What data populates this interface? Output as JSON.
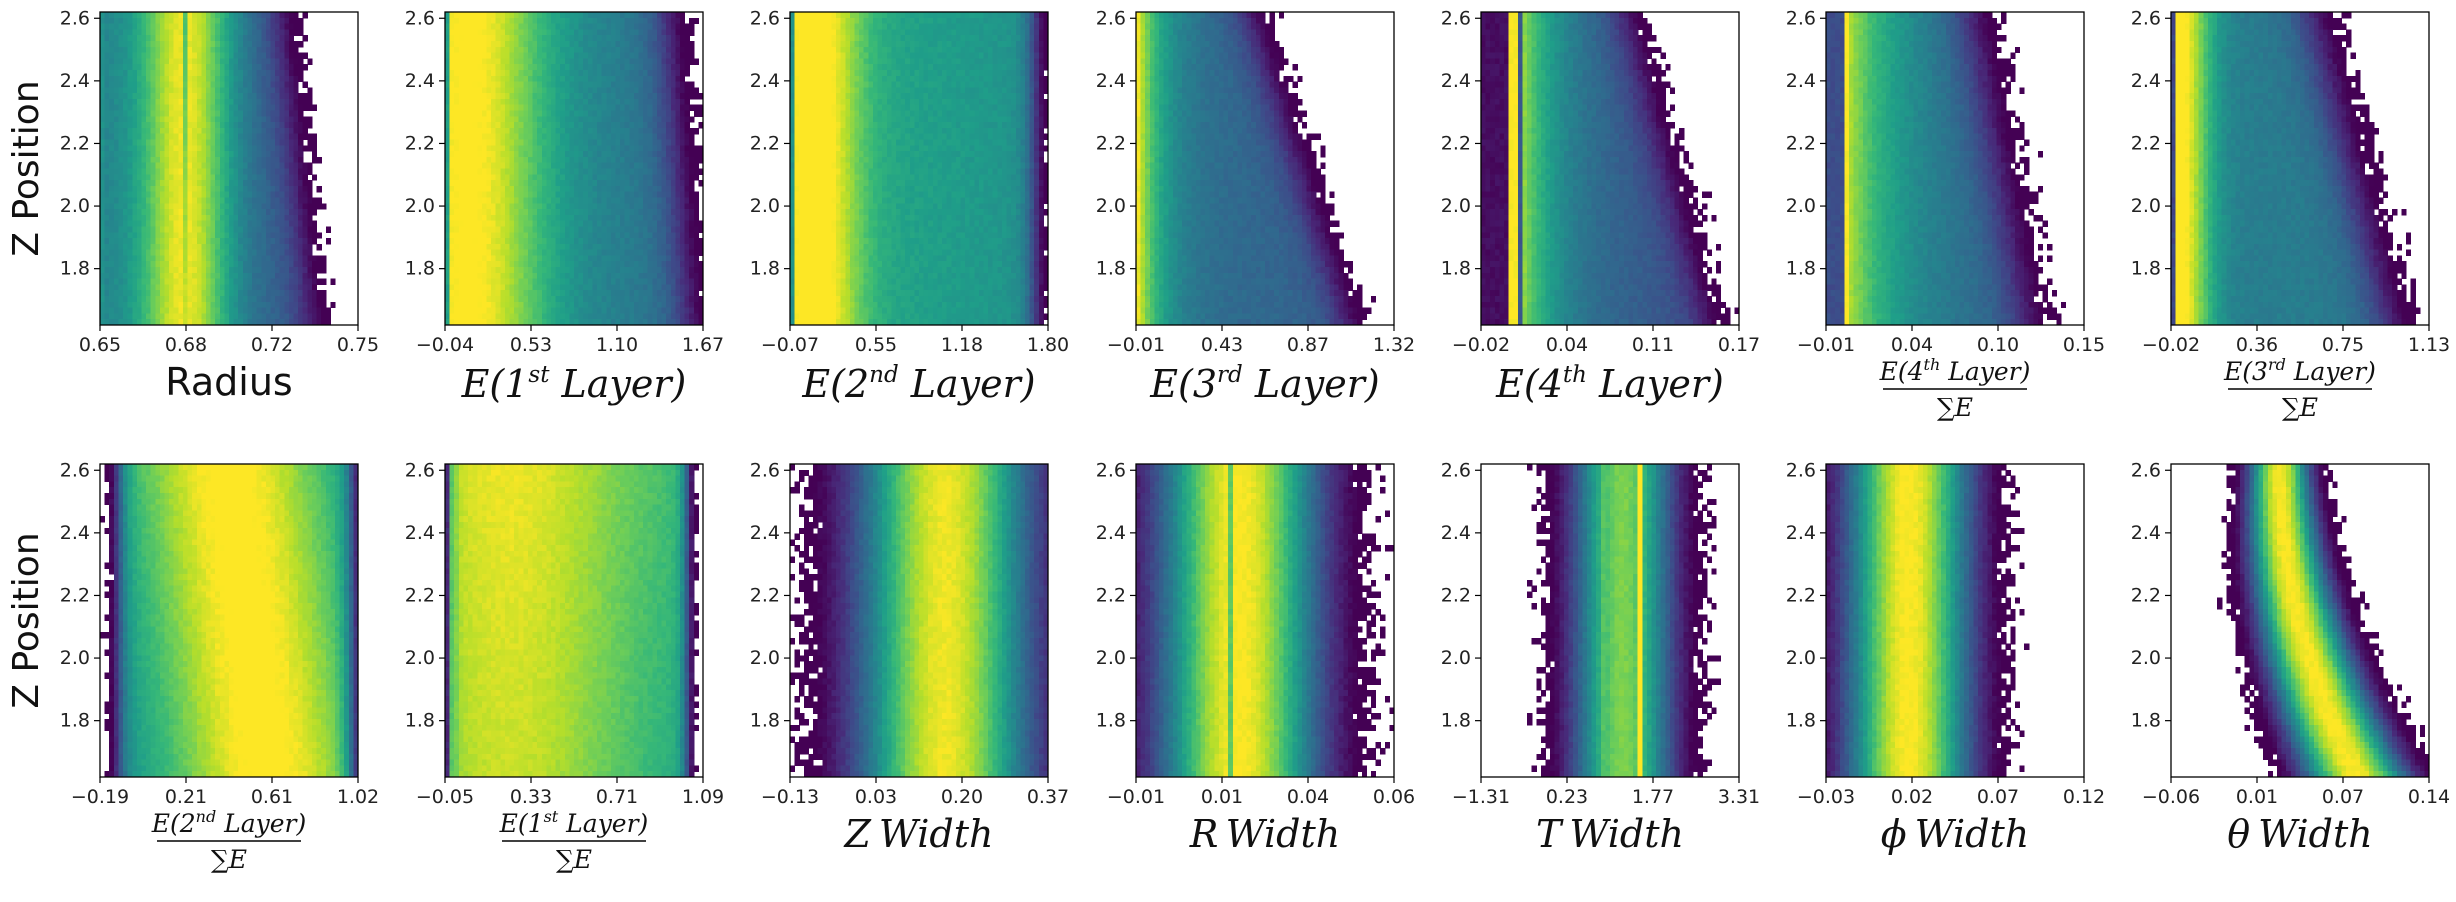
{
  "chart_data": [
    {
      "type": "heatmap",
      "row": 0,
      "col": 0,
      "xlabel": "Radius",
      "xlabel_kind": "plain",
      "xticks": [
        "0.65",
        "0.68",
        "0.72",
        "0.75"
      ],
      "xlim": [
        0.65,
        0.75
      ],
      "yticks": [
        "1.8",
        "2.0",
        "2.2",
        "2.4",
        "2.6"
      ],
      "ylim": [
        1.62,
        2.62
      ],
      "ylabel": "Z Position",
      "pattern": "radius"
    },
    {
      "type": "heatmap",
      "row": 0,
      "col": 1,
      "xlabel": "E(1st Layer)",
      "xlabel_kind": "ordinal",
      "xl_pre": "E(1",
      "xl_sup": "st",
      "xl_post": " Layer)",
      "xticks": [
        "−0.04",
        "0.53",
        "1.10",
        "1.67"
      ],
      "xlim": [
        -0.04,
        1.67
      ],
      "yticks": [
        "1.8",
        "2.0",
        "2.2",
        "2.4",
        "2.6"
      ],
      "ylim": [
        1.62,
        2.62
      ],
      "pattern": "e1"
    },
    {
      "type": "heatmap",
      "row": 0,
      "col": 2,
      "xlabel": "E(2nd Layer)",
      "xlabel_kind": "ordinal",
      "xl_pre": "E(2",
      "xl_sup": "nd",
      "xl_post": " Layer)",
      "xticks": [
        "−0.07",
        "0.55",
        "1.18",
        "1.80"
      ],
      "xlim": [
        -0.07,
        1.8
      ],
      "yticks": [
        "1.8",
        "2.0",
        "2.2",
        "2.4",
        "2.6"
      ],
      "ylim": [
        1.62,
        2.62
      ],
      "pattern": "e2"
    },
    {
      "type": "heatmap",
      "row": 0,
      "col": 3,
      "xlabel": "E(3rd Layer)",
      "xlabel_kind": "ordinal",
      "xl_pre": "E(3",
      "xl_sup": "rd",
      "xl_post": " Layer)",
      "xticks": [
        "−0.01",
        "0.43",
        "0.87",
        "1.32"
      ],
      "xlim": [
        -0.01,
        1.32
      ],
      "yticks": [
        "1.8",
        "2.0",
        "2.2",
        "2.4",
        "2.6"
      ],
      "ylim": [
        1.62,
        2.62
      ],
      "pattern": "e3"
    },
    {
      "type": "heatmap",
      "row": 0,
      "col": 4,
      "xlabel": "E(4th Layer)",
      "xlabel_kind": "ordinal",
      "xl_pre": "E(4",
      "xl_sup": "th",
      "xl_post": " Layer)",
      "xticks": [
        "−0.02",
        "0.04",
        "0.11",
        "0.17"
      ],
      "xlim": [
        -0.02,
        0.17
      ],
      "yticks": [
        "1.8",
        "2.0",
        "2.2",
        "2.4",
        "2.6"
      ],
      "ylim": [
        1.62,
        2.62
      ],
      "pattern": "e4"
    },
    {
      "type": "heatmap",
      "row": 0,
      "col": 5,
      "xlabel": "E(4th Layer)/ΣE",
      "xlabel_kind": "frac",
      "xl_pre": "E(4",
      "xl_sup": "th",
      "xl_post": " Layer)",
      "xl_den": "∑E",
      "xticks": [
        "−0.01",
        "0.04",
        "0.10",
        "0.15"
      ],
      "xlim": [
        -0.01,
        0.15
      ],
      "yticks": [
        "1.8",
        "2.0",
        "2.2",
        "2.4",
        "2.6"
      ],
      "ylim": [
        1.62,
        2.62
      ],
      "pattern": "f4"
    },
    {
      "type": "heatmap",
      "row": 0,
      "col": 6,
      "xlabel": "E(3rd Layer)/ΣE",
      "xlabel_kind": "frac",
      "xl_pre": "E(3",
      "xl_sup": "rd",
      "xl_post": " Layer)",
      "xl_den": "∑E",
      "xticks": [
        "−0.02",
        "0.36",
        "0.75",
        "1.13"
      ],
      "xlim": [
        -0.02,
        1.13
      ],
      "yticks": [
        "1.8",
        "2.0",
        "2.2",
        "2.4",
        "2.6"
      ],
      "ylim": [
        1.62,
        2.62
      ],
      "pattern": "f3"
    },
    {
      "type": "heatmap",
      "row": 1,
      "col": 0,
      "xlabel": "E(2nd Layer)/ΣE",
      "xlabel_kind": "frac",
      "xl_pre": "E(2",
      "xl_sup": "nd",
      "xl_post": " Layer)",
      "xl_den": "∑E",
      "xticks": [
        "−0.19",
        "0.21",
        "0.61",
        "1.02"
      ],
      "xlim": [
        -0.19,
        1.02
      ],
      "yticks": [
        "1.8",
        "2.0",
        "2.2",
        "2.4",
        "2.6"
      ],
      "ylim": [
        1.62,
        2.62
      ],
      "ylabel": "Z Position",
      "pattern": "f2"
    },
    {
      "type": "heatmap",
      "row": 1,
      "col": 1,
      "xlabel": "E(1st Layer)/ΣE",
      "xlabel_kind": "frac",
      "xl_pre": "E(1",
      "xl_sup": "st",
      "xl_post": " Layer)",
      "xl_den": "∑E",
      "xticks": [
        "−0.05",
        "0.33",
        "0.71",
        "1.09"
      ],
      "xlim": [
        -0.05,
        1.09
      ],
      "yticks": [
        "1.8",
        "2.0",
        "2.2",
        "2.4",
        "2.6"
      ],
      "ylim": [
        1.62,
        2.62
      ],
      "pattern": "f1"
    },
    {
      "type": "heatmap",
      "row": 1,
      "col": 2,
      "xlabel": "Z Width",
      "xlabel_kind": "italic",
      "xl_a": "Z",
      "xl_b": "Width",
      "xticks": [
        "−0.13",
        "0.03",
        "0.20",
        "0.37"
      ],
      "xlim": [
        -0.13,
        0.37
      ],
      "yticks": [
        "1.8",
        "2.0",
        "2.2",
        "2.4",
        "2.6"
      ],
      "ylim": [
        1.62,
        2.62
      ],
      "pattern": "zw"
    },
    {
      "type": "heatmap",
      "row": 1,
      "col": 3,
      "xlabel": "R Width",
      "xlabel_kind": "italic",
      "xl_a": "R",
      "xl_b": "Width",
      "xticks": [
        "−0.01",
        "0.01",
        "0.04",
        "0.06"
      ],
      "xlim": [
        -0.01,
        0.06
      ],
      "yticks": [
        "1.8",
        "2.0",
        "2.2",
        "2.4",
        "2.6"
      ],
      "ylim": [
        1.62,
        2.62
      ],
      "pattern": "rw"
    },
    {
      "type": "heatmap",
      "row": 1,
      "col": 4,
      "xlabel": "T Width",
      "xlabel_kind": "italic",
      "xl_a": "T",
      "xl_b": "Width",
      "xticks": [
        "−1.31",
        "0.23",
        "1.77",
        "3.31"
      ],
      "xlim": [
        -1.31,
        3.31
      ],
      "yticks": [
        "1.8",
        "2.0",
        "2.2",
        "2.4",
        "2.6"
      ],
      "ylim": [
        1.62,
        2.62
      ],
      "pattern": "tw"
    },
    {
      "type": "heatmap",
      "row": 1,
      "col": 5,
      "xlabel": "ϕ Width",
      "xlabel_kind": "italic",
      "xl_a": "ϕ",
      "xl_b": "Width",
      "xticks": [
        "−0.03",
        "0.02",
        "0.07",
        "0.12"
      ],
      "xlim": [
        -0.03,
        0.12
      ],
      "yticks": [
        "1.8",
        "2.0",
        "2.2",
        "2.4",
        "2.6"
      ],
      "ylim": [
        1.62,
        2.62
      ],
      "pattern": "pw"
    },
    {
      "type": "heatmap",
      "row": 1,
      "col": 6,
      "xlabel": "θ Width",
      "xlabel_kind": "italic",
      "xl_a": "θ",
      "xl_b": "Width",
      "xticks": [
        "−0.06",
        "0.01",
        "0.07",
        "0.14"
      ],
      "xlim": [
        -0.06,
        0.14
      ],
      "yticks": [
        "1.8",
        "2.0",
        "2.2",
        "2.4",
        "2.6"
      ],
      "ylim": [
        1.62,
        2.62
      ],
      "pattern": "thw"
    }
  ],
  "colormap": [
    "#440154",
    "#482878",
    "#3e4a89",
    "#31688e",
    "#26828e",
    "#1f9e89",
    "#35b779",
    "#6ece58",
    "#b5de2b",
    "#fde725"
  ],
  "frame_color": "#000000"
}
